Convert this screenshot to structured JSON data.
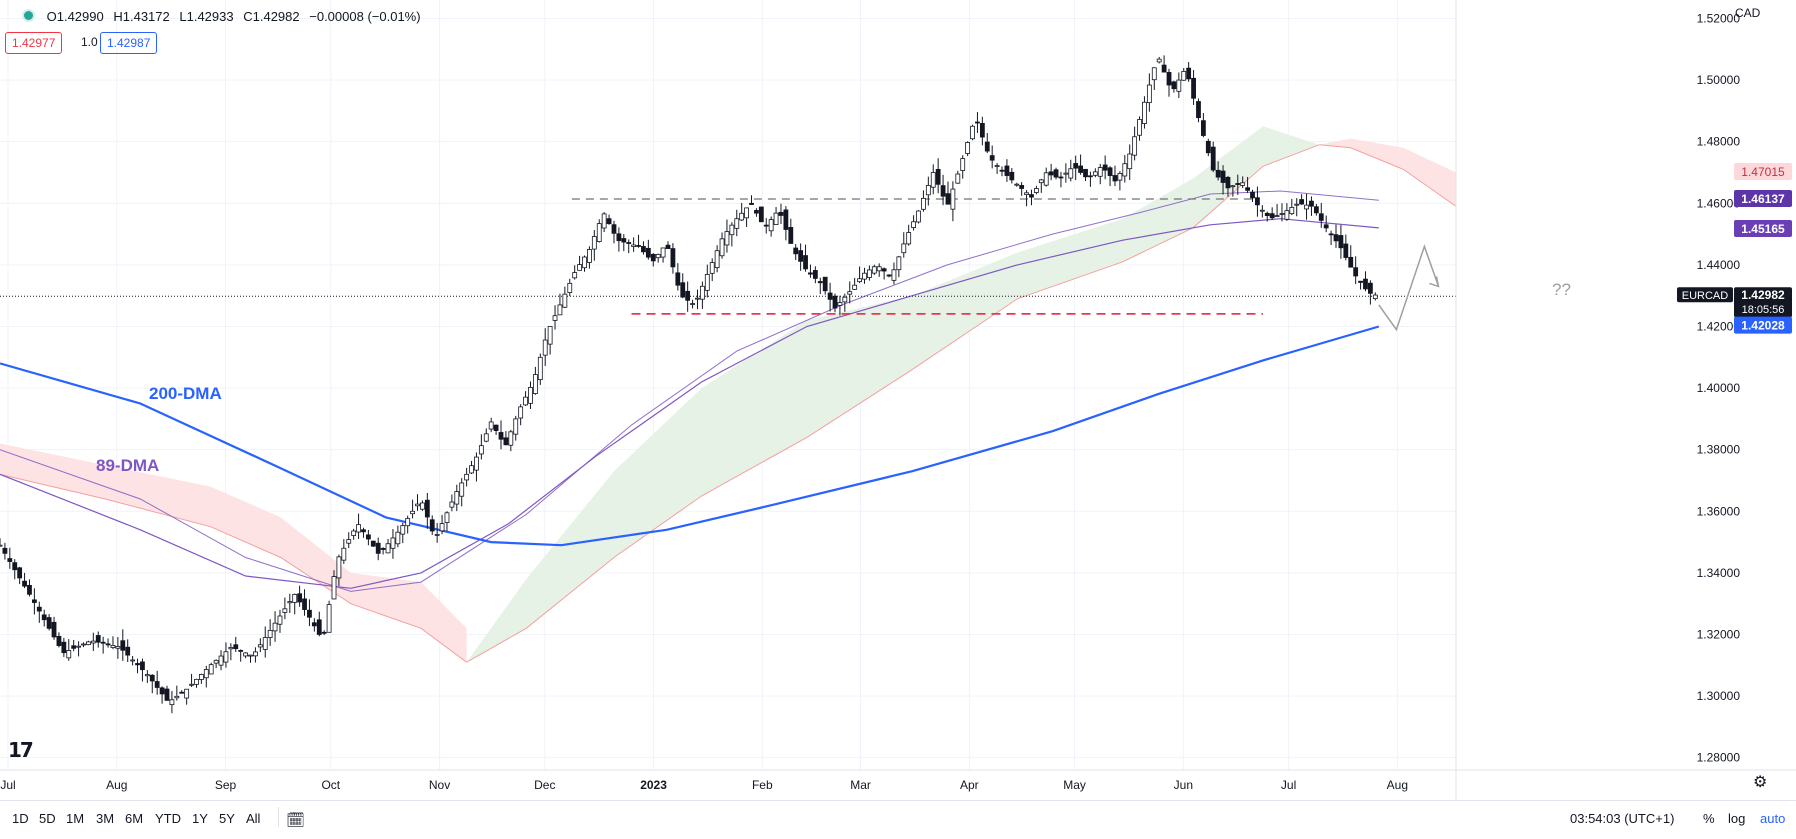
{
  "symbol": "EURCAD",
  "currency": "CAD",
  "ohlc": {
    "open": "O1.42990",
    "high": "H1.43172",
    "low": "L1.42933",
    "close": "C1.42982",
    "change": "−0.00008 (−0.01%)"
  },
  "quote": {
    "bid": "1.42977",
    "spread": "1.0",
    "ask": "1.42987"
  },
  "price_labels": {
    "last": "1.42982",
    "countdown": "18:05:56",
    "dma200": "1.42028",
    "dma89": "1.45165",
    "level_mid": "1.46137",
    "cloud_top": "1.47015"
  },
  "annotations": {
    "dma200": "200-DMA",
    "dma89": "89-DMA",
    "question": "??"
  },
  "range_buttons": [
    "1D",
    "5D",
    "1M",
    "3M",
    "6M",
    "YTD",
    "1Y",
    "5Y",
    "All"
  ],
  "status": {
    "time": "03:54:03 (UTC+1)",
    "percent": "%",
    "log": "log",
    "auto": "auto"
  },
  "colors": {
    "dma200": "#2962ff",
    "dma89": "#7e57c2",
    "cloud_bull": "#e3f1e3",
    "cloud_bear": "#fde0e0",
    "support": "#e53950",
    "resistance": "#888888",
    "up_candle": "#ffffff",
    "down_candle": "#131722"
  },
  "chart_data": {
    "type": "candlestick",
    "y_axis_ticks": [
      "1.28000",
      "1.30000",
      "1.32000",
      "1.34000",
      "1.36000",
      "1.38000",
      "1.40000",
      "1.42000",
      "1.44000",
      "1.46000",
      "1.48000",
      "1.50000",
      "1.52000"
    ],
    "x_axis_ticks": [
      "Jul",
      "Aug",
      "Sep",
      "Oct",
      "Nov",
      "Dec",
      "2023",
      "Feb",
      "Mar",
      "Apr",
      "May",
      "Jun",
      "Jul",
      "Aug"
    ],
    "ylim": [
      1.276,
      1.526
    ],
    "xlim_days": [
      0,
      415
    ],
    "close_path": [
      [
        0,
        1.349
      ],
      [
        10,
        1.33
      ],
      [
        18,
        1.314
      ],
      [
        26,
        1.318
      ],
      [
        34,
        1.316
      ],
      [
        42,
        1.307
      ],
      [
        48,
        1.298
      ],
      [
        53,
        1.302
      ],
      [
        60,
        1.31
      ],
      [
        66,
        1.316
      ],
      [
        72,
        1.313
      ],
      [
        78,
        1.323
      ],
      [
        84,
        1.333
      ],
      [
        88,
        1.326
      ],
      [
        92,
        1.318
      ],
      [
        96,
        1.344
      ],
      [
        102,
        1.356
      ],
      [
        108,
        1.346
      ],
      [
        114,
        1.354
      ],
      [
        120,
        1.364
      ],
      [
        124,
        1.351
      ],
      [
        130,
        1.366
      ],
      [
        136,
        1.378
      ],
      [
        140,
        1.389
      ],
      [
        144,
        1.381
      ],
      [
        148,
        1.393
      ],
      [
        152,
        1.402
      ],
      [
        156,
        1.418
      ],
      [
        160,
        1.428
      ],
      [
        164,
        1.438
      ],
      [
        168,
        1.445
      ],
      [
        172,
        1.457
      ],
      [
        176,
        1.448
      ],
      [
        182,
        1.446
      ],
      [
        186,
        1.441
      ],
      [
        190,
        1.447
      ],
      [
        194,
        1.43
      ],
      [
        198,
        1.427
      ],
      [
        202,
        1.438
      ],
      [
        206,
        1.449
      ],
      [
        210,
        1.455
      ],
      [
        214,
        1.46
      ],
      [
        218,
        1.452
      ],
      [
        222,
        1.458
      ],
      [
        226,
        1.445
      ],
      [
        230,
        1.438
      ],
      [
        234,
        1.434
      ],
      [
        238,
        1.426
      ],
      [
        242,
        1.431
      ],
      [
        246,
        1.437
      ],
      [
        250,
        1.44
      ],
      [
        254,
        1.436
      ],
      [
        258,
        1.448
      ],
      [
        262,
        1.458
      ],
      [
        266,
        1.47
      ],
      [
        270,
        1.459
      ],
      [
        274,
        1.473
      ],
      [
        278,
        1.488
      ],
      [
        282,
        1.475
      ],
      [
        286,
        1.47
      ],
      [
        290,
        1.466
      ],
      [
        294,
        1.462
      ],
      [
        298,
        1.47
      ],
      [
        302,
        1.468
      ],
      [
        306,
        1.472
      ],
      [
        310,
        1.468
      ],
      [
        314,
        1.472
      ],
      [
        318,
        1.467
      ],
      [
        322,
        1.476
      ],
      [
        326,
        1.492
      ],
      [
        330,
        1.508
      ],
      [
        334,
        1.496
      ],
      [
        338,
        1.504
      ],
      [
        342,
        1.486
      ],
      [
        346,
        1.47
      ],
      [
        350,
        1.465
      ],
      [
        354,
        1.467
      ],
      [
        358,
        1.46
      ],
      [
        362,
        1.455
      ],
      [
        366,
        1.457
      ],
      [
        370,
        1.46
      ],
      [
        374,
        1.459
      ],
      [
        378,
        1.452
      ],
      [
        382,
        1.446
      ],
      [
        386,
        1.437
      ],
      [
        390,
        1.431
      ],
      [
        393,
        1.4298
      ]
    ],
    "dma200": [
      [
        0,
        1.408
      ],
      [
        40,
        1.395
      ],
      [
        80,
        1.374
      ],
      [
        110,
        1.358
      ],
      [
        140,
        1.35
      ],
      [
        160,
        1.349
      ],
      [
        190,
        1.354
      ],
      [
        220,
        1.362
      ],
      [
        260,
        1.373
      ],
      [
        300,
        1.386
      ],
      [
        330,
        1.398
      ],
      [
        360,
        1.409
      ],
      [
        393,
        1.42
      ]
    ],
    "dma89": [
      [
        0,
        1.372
      ],
      [
        40,
        1.354
      ],
      [
        70,
        1.339
      ],
      [
        100,
        1.335
      ],
      [
        120,
        1.34
      ],
      [
        145,
        1.356
      ],
      [
        170,
        1.378
      ],
      [
        200,
        1.402
      ],
      [
        230,
        1.42
      ],
      [
        260,
        1.43
      ],
      [
        290,
        1.44
      ],
      [
        320,
        1.448
      ],
      [
        345,
        1.453
      ],
      [
        365,
        1.455
      ],
      [
        393,
        1.452
      ]
    ],
    "ma_short": [
      [
        0,
        1.38
      ],
      [
        40,
        1.364
      ],
      [
        70,
        1.345
      ],
      [
        100,
        1.334
      ],
      [
        120,
        1.337
      ],
      [
        150,
        1.359
      ],
      [
        180,
        1.388
      ],
      [
        210,
        1.412
      ],
      [
        240,
        1.427
      ],
      [
        270,
        1.44
      ],
      [
        300,
        1.45
      ],
      [
        325,
        1.457
      ],
      [
        345,
        1.463
      ],
      [
        365,
        1.464
      ],
      [
        393,
        1.461
      ]
    ],
    "levels": {
      "resistance": 1.4614,
      "support": 1.4241
    },
    "cloud_segments": [
      {
        "color": "bear",
        "upper": [
          [
            0,
            1.382
          ],
          [
            30,
            1.375
          ],
          [
            60,
            1.368
          ],
          [
            80,
            1.358
          ],
          [
            100,
            1.34
          ],
          [
            120,
            1.337
          ],
          [
            133,
            1.322
          ]
        ],
        "lower": [
          [
            0,
            1.372
          ],
          [
            30,
            1.364
          ],
          [
            60,
            1.355
          ],
          [
            80,
            1.345
          ],
          [
            100,
            1.33
          ],
          [
            120,
            1.322
          ],
          [
            133,
            1.311
          ]
        ]
      },
      {
        "color": "bull",
        "upper": [
          [
            133,
            1.311
          ],
          [
            150,
            1.338
          ],
          [
            175,
            1.373
          ],
          [
            200,
            1.4
          ],
          [
            230,
            1.422
          ],
          [
            260,
            1.43
          ],
          [
            290,
            1.444
          ],
          [
            320,
            1.455
          ],
          [
            340,
            1.468
          ],
          [
            360,
            1.485
          ],
          [
            376,
            1.479
          ]
        ],
        "lower": [
          [
            133,
            1.311
          ],
          [
            150,
            1.322
          ],
          [
            175,
            1.345
          ],
          [
            200,
            1.365
          ],
          [
            230,
            1.384
          ],
          [
            260,
            1.406
          ],
          [
            290,
            1.429
          ],
          [
            320,
            1.441
          ],
          [
            340,
            1.452
          ],
          [
            360,
            1.472
          ],
          [
            376,
            1.479
          ]
        ]
      },
      {
        "color": "bear",
        "upper": [
          [
            376,
            1.479
          ],
          [
            385,
            1.481
          ],
          [
            400,
            1.478
          ],
          [
            415,
            1.47
          ]
        ],
        "lower": [
          [
            376,
            1.479
          ],
          [
            385,
            1.478
          ],
          [
            400,
            1.471
          ],
          [
            415,
            1.459
          ]
        ]
      }
    ],
    "projection": [
      [
        393,
        1.427
      ],
      [
        398,
        1.419
      ],
      [
        406,
        1.446
      ],
      [
        410,
        1.433
      ]
    ]
  }
}
